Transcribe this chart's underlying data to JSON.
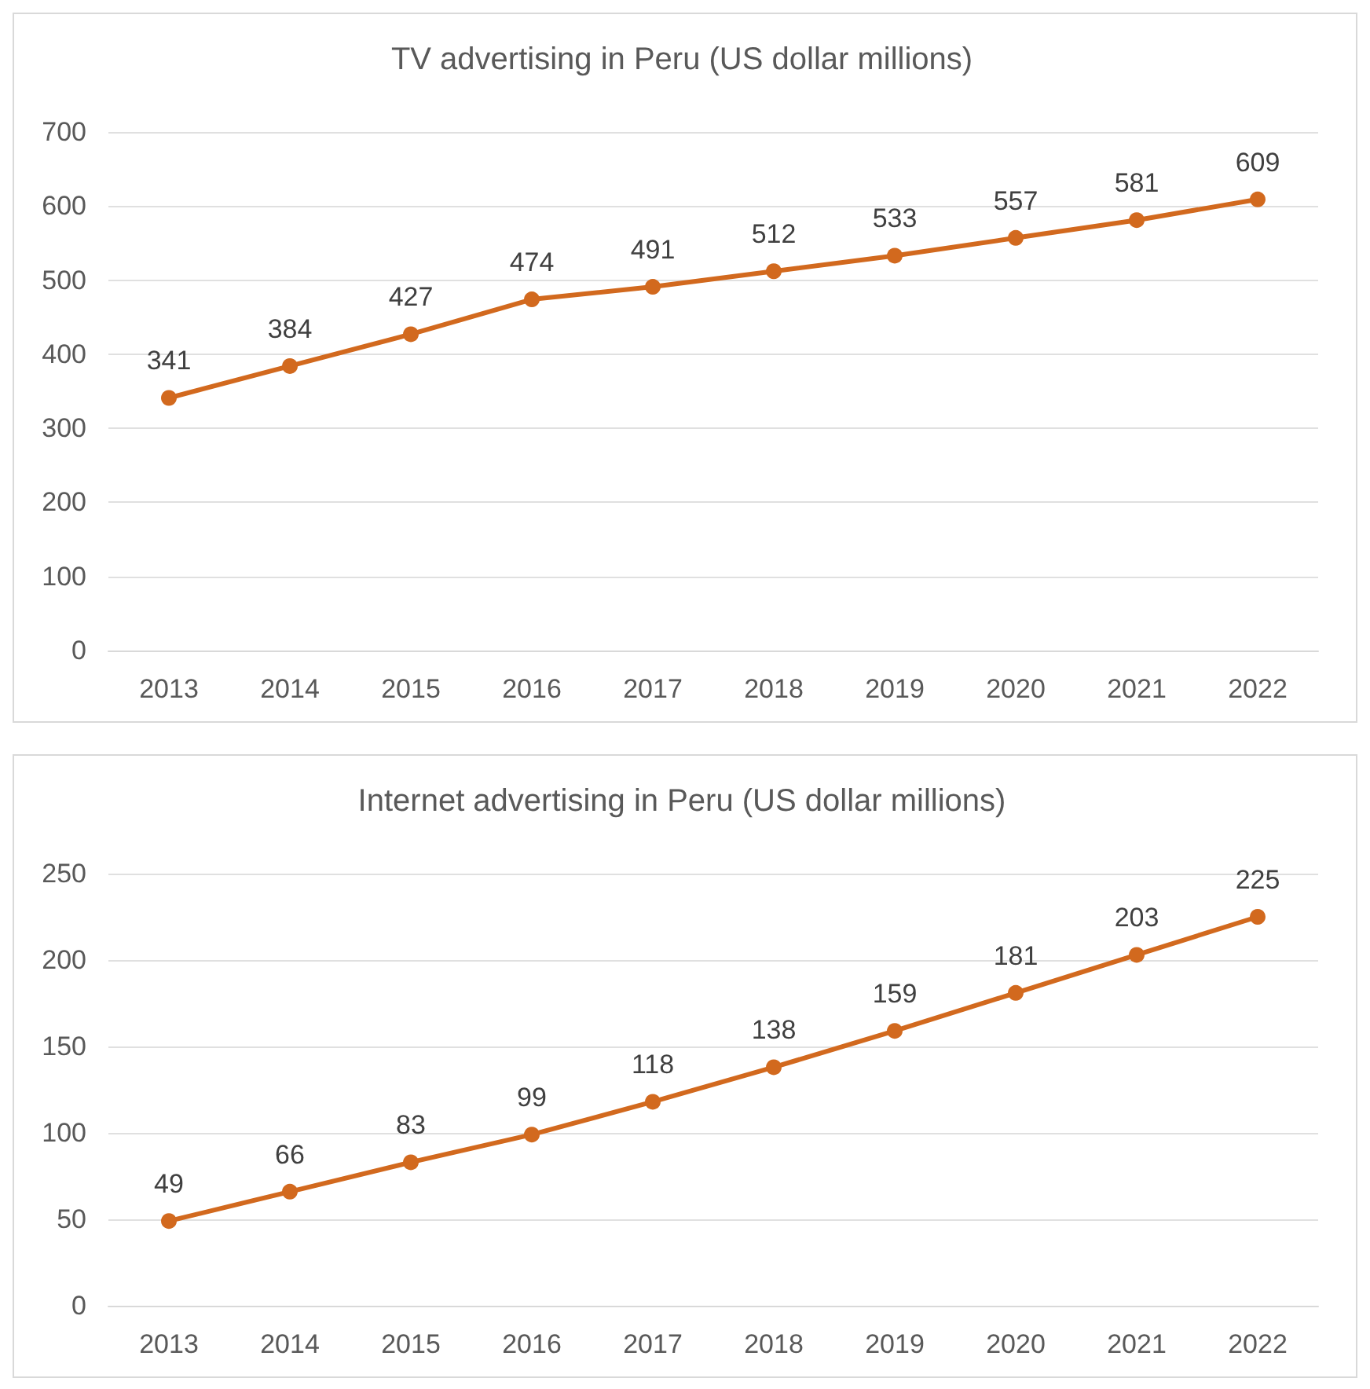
{
  "chart_data": [
    {
      "type": "line",
      "title": "TV advertising in Peru (US dollar millions)",
      "categories": [
        "2013",
        "2014",
        "2015",
        "2016",
        "2017",
        "2018",
        "2019",
        "2020",
        "2021",
        "2022"
      ],
      "series": [
        {
          "color": "#d2691e",
          "values": [
            341,
            384,
            427,
            474,
            491,
            512,
            533,
            557,
            581,
            609
          ]
        }
      ],
      "ylim": [
        0,
        700
      ],
      "yticks": [
        0,
        100,
        200,
        300,
        400,
        500,
        600,
        700
      ],
      "grid": "y",
      "data_labels": true,
      "marker": "circle",
      "line_style": "solid"
    },
    {
      "type": "line",
      "title": "Internet advertising in Peru (US dollar millions)",
      "categories": [
        "2013",
        "2014",
        "2015",
        "2016",
        "2017",
        "2018",
        "2019",
        "2020",
        "2021",
        "2022"
      ],
      "series": [
        {
          "color": "#d2691e",
          "values": [
            49,
            66,
            83,
            99,
            118,
            138,
            159,
            181,
            203,
            225
          ]
        }
      ],
      "ylim": [
        0,
        250
      ],
      "yticks": [
        0,
        50,
        100,
        150,
        200,
        250
      ],
      "grid": "y",
      "data_labels": true,
      "marker": "circle",
      "line_style": "solid"
    }
  ]
}
